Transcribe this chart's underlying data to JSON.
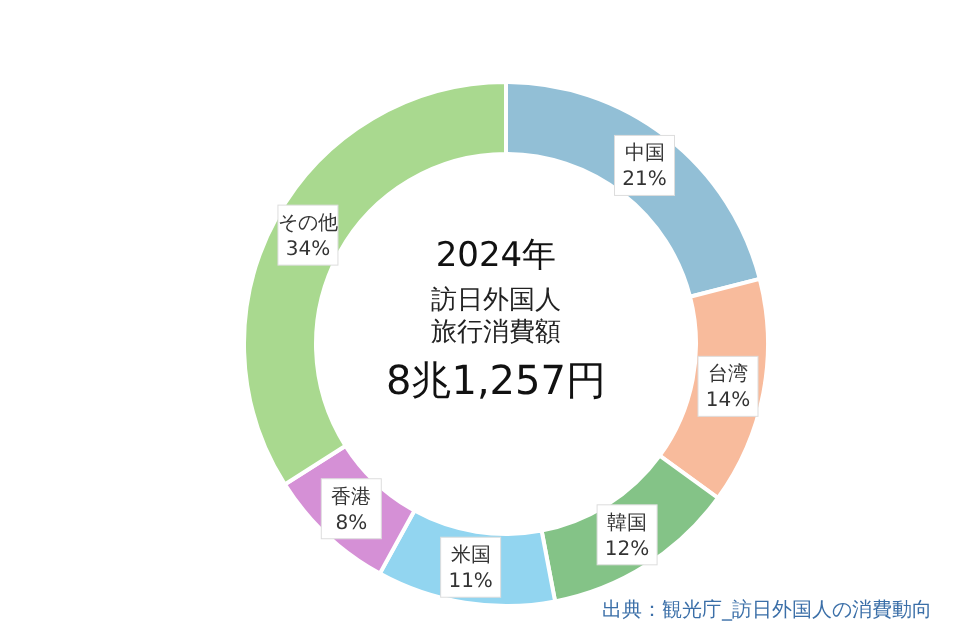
{
  "chart_data": {
    "type": "donut",
    "title": "2024年",
    "subtitle": "訪日外国人旅行消費額",
    "categories": [
      "中国",
      "台湾",
      "韓国",
      "米国",
      "香港",
      "その他"
    ],
    "values": [
      21,
      14,
      12,
      11,
      8,
      34
    ],
    "colors": [
      "#92bfd6",
      "#f8bb9c",
      "#84c387",
      "#92d5f0",
      "#d590d6",
      "#a9d98f"
    ],
    "value_labels": [
      "21%",
      "14%",
      "12%",
      "11%",
      "8%",
      "34%"
    ],
    "legend": false,
    "annotations": [
      "8兆1,257円",
      "出典：観光庁_訪日外国人の消費動向"
    ]
  }
}
